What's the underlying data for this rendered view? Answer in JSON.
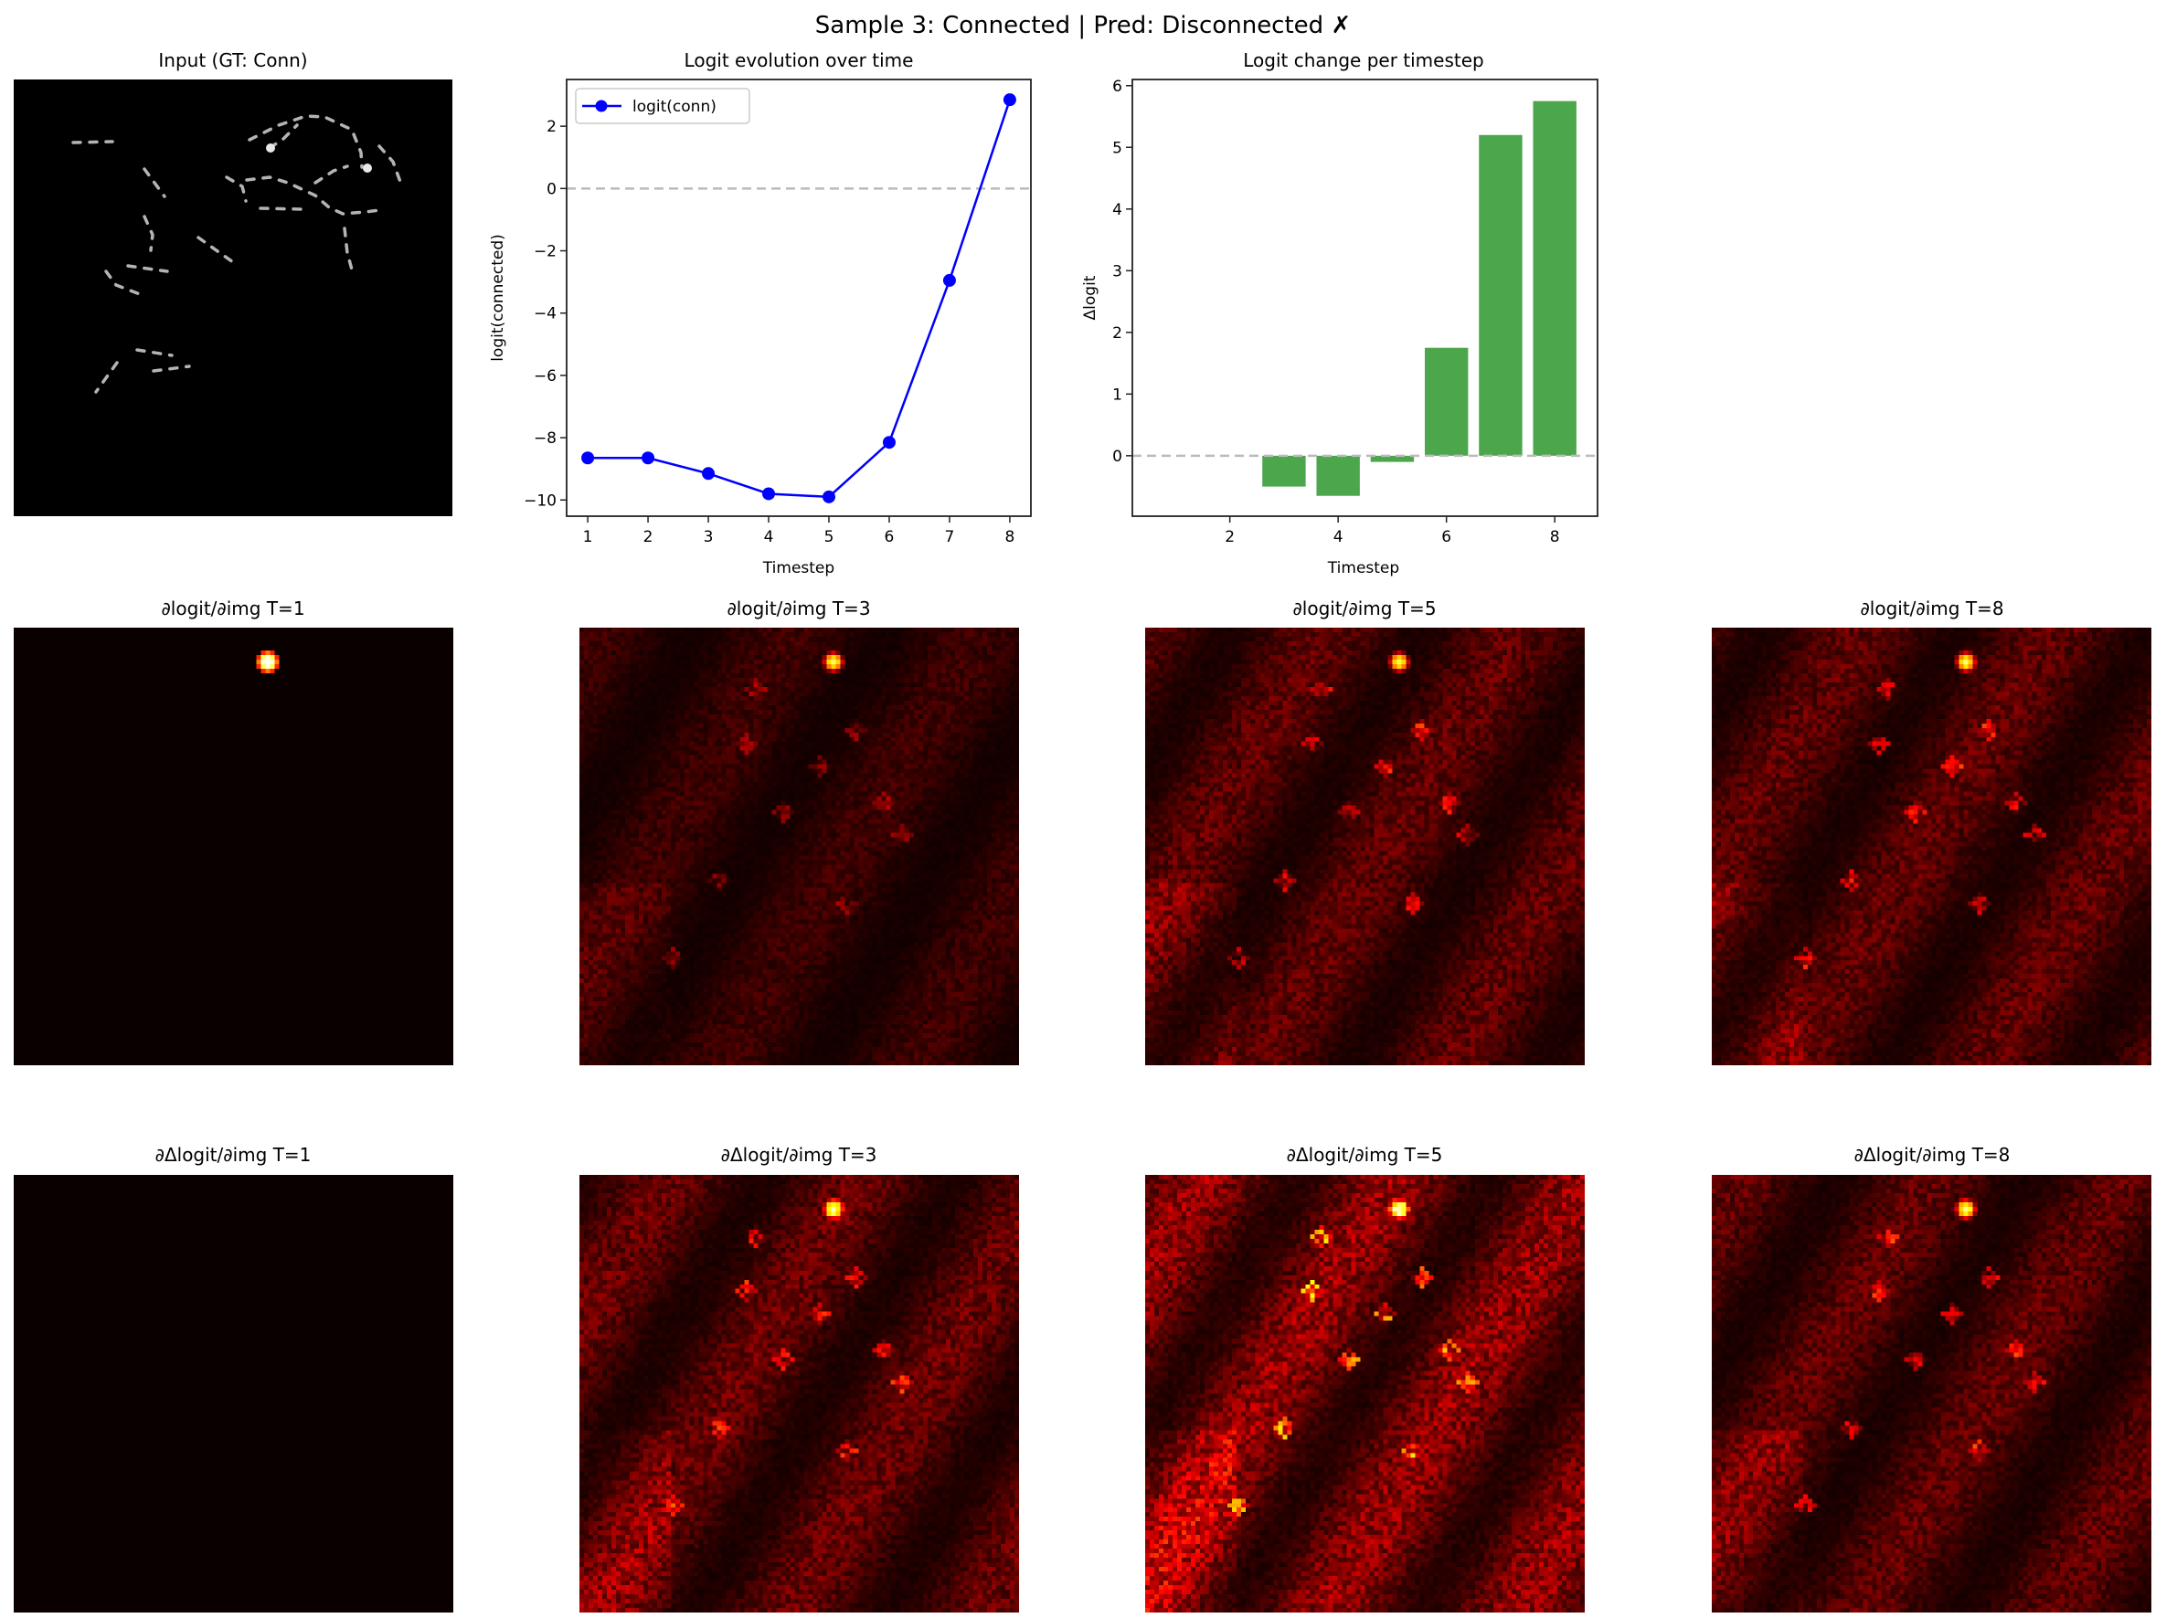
{
  "figure": {
    "suptitle": "Sample 3: Connected | Pred: Disconnected ✗",
    "input_panel_title": "Input (GT: Conn)",
    "grad_logit_titles": [
      "∂logit/∂img T=1",
      "∂logit/∂img T=3",
      "∂logit/∂img T=5",
      "∂logit/∂img T=8"
    ],
    "grad_delta_titles": [
      "∂Δlogit/∂img T=1",
      "∂Δlogit/∂img T=3",
      "∂Δlogit/∂img T=5",
      "∂Δlogit/∂img T=8"
    ]
  },
  "chart_data": [
    {
      "type": "line",
      "title": "Logit evolution over time",
      "xlabel": "Timestep",
      "ylabel": "logit(connected)",
      "x": [
        1,
        2,
        3,
        4,
        5,
        6,
        7,
        8
      ],
      "series": [
        {
          "name": "logit(conn)",
          "values": [
            -8.65,
            -8.65,
            -9.15,
            -9.8,
            -9.9,
            -8.15,
            -2.95,
            2.85
          ],
          "color": "#0000ff"
        }
      ],
      "xticks": [
        1,
        2,
        3,
        4,
        5,
        6,
        7,
        8
      ],
      "yticks": [
        2,
        0,
        -2,
        -4,
        -6,
        -8,
        -10
      ],
      "xlim": [
        0.65,
        8.35
      ],
      "ylim": [
        -10.52,
        3.5
      ],
      "reference_line": 0,
      "legend": "top-left",
      "grid": false
    },
    {
      "type": "bar",
      "title": "Logit change per timestep",
      "xlabel": "Timestep",
      "ylabel": "Δlogit",
      "x": [
        2,
        3,
        4,
        5,
        6,
        7,
        8
      ],
      "values": [
        0,
        -0.5,
        -0.65,
        -0.1,
        1.75,
        5.2,
        5.75
      ],
      "color": "#4ca64c",
      "xticks": [
        2,
        4,
        6,
        8
      ],
      "yticks": [
        0,
        1,
        2,
        3,
        4,
        5,
        6
      ],
      "xlim": [
        0.2,
        8.79
      ],
      "ylim": [
        -0.98,
        6.1
      ],
      "reference_line": 0,
      "grid": false
    }
  ]
}
